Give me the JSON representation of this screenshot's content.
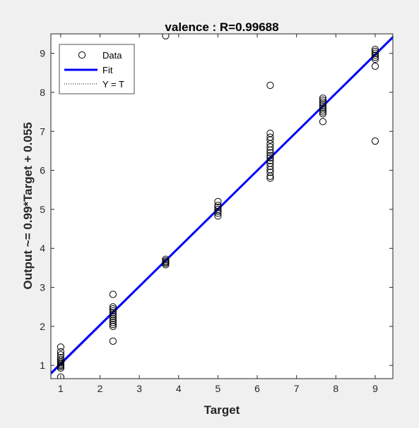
{
  "chart_data": {
    "type": "scatter",
    "title": "valence : R=0.99688",
    "xlabel": "Target",
    "ylabel": "Output ~= 0.99*Target + 0.055",
    "xlim": [
      0.75,
      9.45
    ],
    "ylim": [
      0.66,
      9.5
    ],
    "xticks": [
      "1",
      "2",
      "3",
      "4",
      "5",
      "6",
      "7",
      "8",
      "9"
    ],
    "yticks": [
      "1",
      "2",
      "3",
      "4",
      "5",
      "6",
      "7",
      "8",
      "9"
    ],
    "grid": false,
    "legend": {
      "placement": "top-left",
      "entries": [
        "Data",
        "Fit",
        "Y = T"
      ]
    },
    "colors": {
      "fit": "#0000ff",
      "identity": "#000000",
      "markers": "#000000",
      "figure_bg": "#f0f0f0",
      "axes_bg": "#ffffff"
    },
    "fit": {
      "slope": 0.99,
      "intercept": 0.055
    },
    "series": [
      {
        "name": "Data",
        "points": [
          [
            1,
            0.7
          ],
          [
            1,
            0.93
          ],
          [
            1,
            0.97
          ],
          [
            1,
            1.0
          ],
          [
            1,
            1.03
          ],
          [
            1,
            1.07
          ],
          [
            1,
            1.1
          ],
          [
            1,
            1.15
          ],
          [
            1,
            1.2
          ],
          [
            1,
            1.27
          ],
          [
            1,
            1.35
          ],
          [
            1,
            1.47
          ],
          [
            2.33,
            1.62
          ],
          [
            2.33,
            2.0
          ],
          [
            2.33,
            2.05
          ],
          [
            2.33,
            2.1
          ],
          [
            2.33,
            2.15
          ],
          [
            2.33,
            2.2
          ],
          [
            2.33,
            2.25
          ],
          [
            2.33,
            2.3
          ],
          [
            2.33,
            2.35
          ],
          [
            2.33,
            2.4
          ],
          [
            2.33,
            2.45
          ],
          [
            2.33,
            2.5
          ],
          [
            2.33,
            2.82
          ],
          [
            3.67,
            3.58
          ],
          [
            3.67,
            3.62
          ],
          [
            3.67,
            3.65
          ],
          [
            3.67,
            3.68
          ],
          [
            3.67,
            3.72
          ],
          [
            3.67,
            9.45
          ],
          [
            5,
            4.83
          ],
          [
            5,
            4.9
          ],
          [
            5,
            4.95
          ],
          [
            5,
            5.0
          ],
          [
            5,
            5.05
          ],
          [
            5,
            5.1
          ],
          [
            5,
            5.2
          ],
          [
            6.33,
            5.8
          ],
          [
            6.33,
            5.85
          ],
          [
            6.33,
            5.95
          ],
          [
            6.33,
            6.02
          ],
          [
            6.33,
            6.1
          ],
          [
            6.33,
            6.18
          ],
          [
            6.33,
            6.25
          ],
          [
            6.33,
            6.32
          ],
          [
            6.33,
            6.38
          ],
          [
            6.33,
            6.45
          ],
          [
            6.33,
            6.52
          ],
          [
            6.33,
            6.6
          ],
          [
            6.33,
            6.68
          ],
          [
            6.33,
            6.78
          ],
          [
            6.33,
            6.85
          ],
          [
            6.33,
            6.95
          ],
          [
            6.33,
            8.18
          ],
          [
            7.67,
            7.25
          ],
          [
            7.67,
            7.45
          ],
          [
            7.67,
            7.5
          ],
          [
            7.67,
            7.55
          ],
          [
            7.67,
            7.6
          ],
          [
            7.67,
            7.65
          ],
          [
            7.67,
            7.7
          ],
          [
            7.67,
            7.75
          ],
          [
            7.67,
            7.8
          ],
          [
            7.67,
            7.85
          ],
          [
            9,
            6.75
          ],
          [
            9,
            8.67
          ],
          [
            9,
            8.85
          ],
          [
            9,
            8.9
          ],
          [
            9,
            8.95
          ],
          [
            9,
            9.0
          ],
          [
            9,
            9.05
          ],
          [
            9,
            9.1
          ]
        ]
      }
    ]
  }
}
